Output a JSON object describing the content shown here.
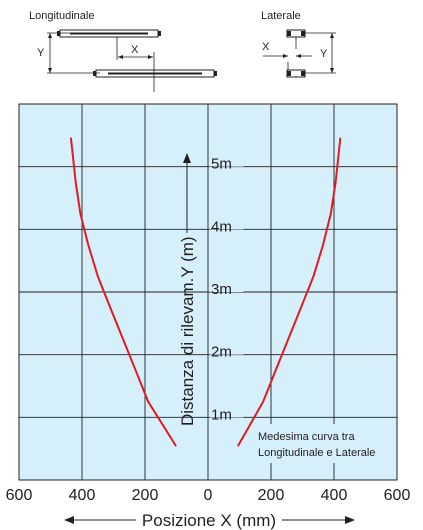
{
  "diagrams": {
    "longitudinal": {
      "title": "Longitudinale",
      "x_label": "X",
      "y_label": "Y"
    },
    "lateral": {
      "title": "Laterale",
      "x_label": "X",
      "y_label": "Y"
    }
  },
  "colors": {
    "plot_background": "#d5effb",
    "grid": "#231f20",
    "curve": "#e01b22",
    "text": "#231f20"
  },
  "chart_data": {
    "type": "line",
    "xlabel": "Posizione X (mm)",
    "ylabel": "Distanza di rilevam.Y (m)",
    "xlim": [
      -600,
      600
    ],
    "ylim": [
      0,
      6
    ],
    "grid": true,
    "x_ticks": [
      {
        "value": -600,
        "label": "600"
      },
      {
        "value": -400,
        "label": "400"
      },
      {
        "value": -200,
        "label": "200"
      },
      {
        "value": 0,
        "label": "0"
      },
      {
        "value": 200,
        "label": "200"
      },
      {
        "value": 400,
        "label": "400"
      },
      {
        "value": 600,
        "label": "600"
      }
    ],
    "y_ticks": [
      {
        "value": 1,
        "label": "1m"
      },
      {
        "value": 2,
        "label": "2m"
      },
      {
        "value": 3,
        "label": "3m"
      },
      {
        "value": 4,
        "label": "4m"
      },
      {
        "value": 5,
        "label": "5m"
      }
    ],
    "annotation": [
      "Medesima curva tra",
      "Longitudinale e Laterale"
    ],
    "series": [
      {
        "x": [
          -103,
          -140,
          -190,
          -230,
          -270,
          -310,
          -350,
          -380,
          -405,
          -420,
          -435
        ],
        "y": [
          0.55,
          0.85,
          1.25,
          1.75,
          2.25,
          2.75,
          3.25,
          3.75,
          4.25,
          4.75,
          5.45
        ]
      },
      {
        "x": [
          96,
          130,
          175,
          215,
          255,
          295,
          335,
          365,
          390,
          405,
          420
        ],
        "y": [
          0.55,
          0.85,
          1.25,
          1.75,
          2.25,
          2.75,
          3.25,
          3.75,
          4.25,
          4.75,
          5.45
        ]
      }
    ]
  }
}
